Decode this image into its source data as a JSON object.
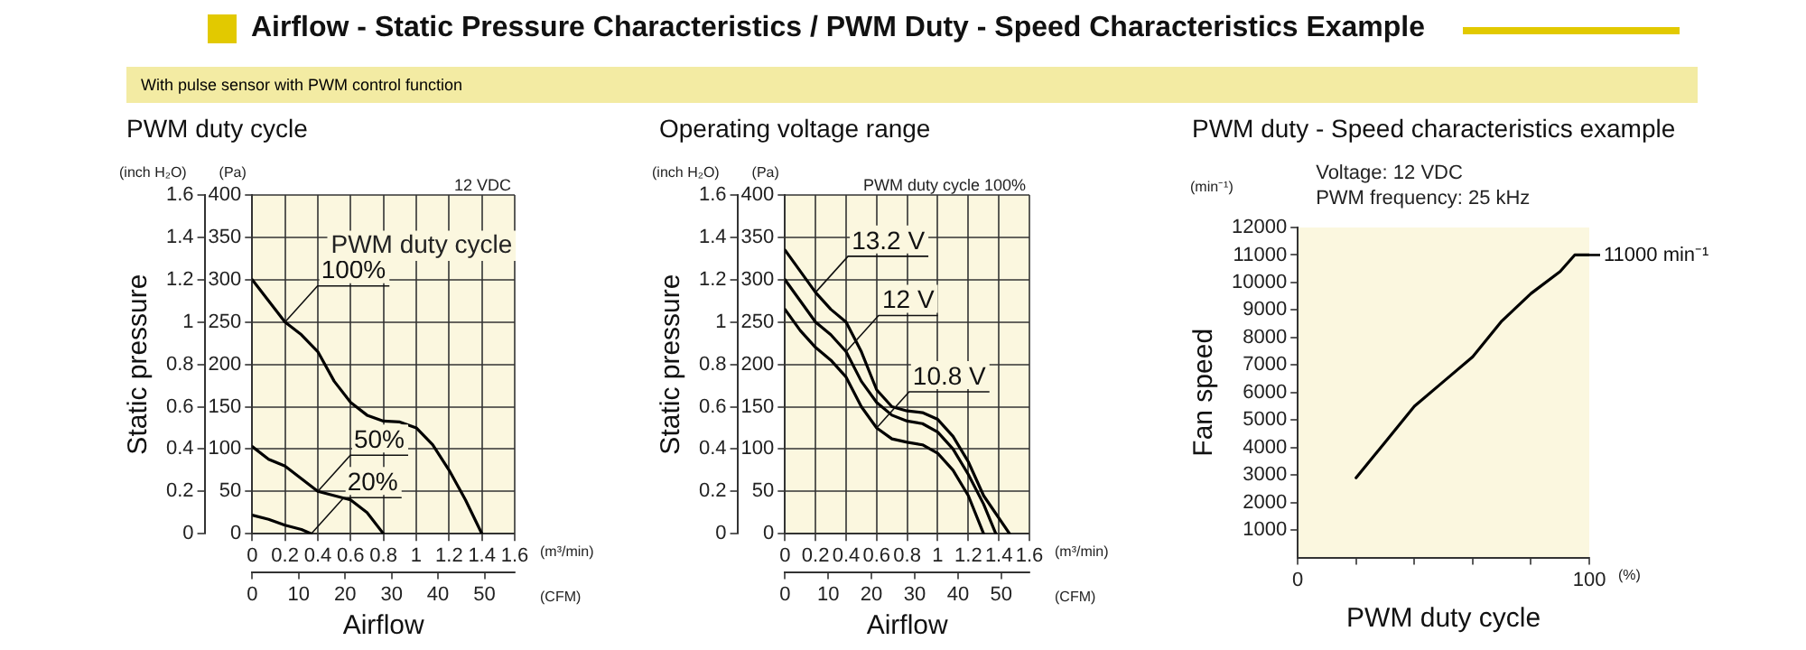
{
  "chart_data": [
    {
      "type": "line",
      "title": "PWM duty cycle",
      "subtitle": "With pulse sensor with PWM control function",
      "xlabel": "Airflow",
      "ylabel": "Static pressure",
      "annotations": [
        "Airflow - Static Pressure Characteristics / PWM Duty - Speed Characteristics Example",
        "(inch H₂O)",
        "(Pa)",
        "(m³/min)",
        "(CFM)",
        "12 VDC",
        "PWM duty cycle"
      ],
      "series": [
        {
          "name": "100%",
          "color": "#000000",
          "axis": "y2",
          "x": [
            0,
            0.1,
            0.2,
            0.3,
            0.4,
            0.5,
            0.6,
            0.7,
            0.8,
            0.9,
            1.0,
            1.1,
            1.2,
            1.3,
            1.4
          ],
          "values": [
            300,
            275,
            250,
            235,
            215,
            180,
            155,
            140,
            133,
            132,
            125,
            105,
            75,
            40,
            0
          ]
        },
        {
          "name": "50%",
          "color": "#000000",
          "axis": "y2",
          "x": [
            0,
            0.1,
            0.2,
            0.3,
            0.4,
            0.5,
            0.6,
            0.7,
            0.8
          ],
          "values": [
            103,
            88,
            80,
            65,
            50,
            45,
            40,
            25,
            0
          ]
        },
        {
          "name": "20%",
          "color": "#000000",
          "axis": "y2",
          "x": [
            0,
            0.1,
            0.2,
            0.3,
            0.36
          ],
          "values": [
            22,
            17,
            10,
            5,
            0
          ]
        }
      ],
      "xlim": [
        0,
        1.6
      ],
      "xticks": [
        0,
        0.2,
        0.4,
        0.6,
        0.8,
        1.0,
        1.2,
        1.4,
        1.6
      ],
      "y2lim": [
        0,
        400
      ],
      "y2ticks": [
        0,
        50,
        100,
        150,
        200,
        250,
        300,
        350,
        400
      ],
      "ylim": [
        0,
        1.6
      ],
      "yticks": [
        0,
        0.2,
        0.4,
        0.6,
        0.8,
        1.0,
        1.2,
        1.4,
        1.6
      ],
      "x2lim": [
        0,
        56.5
      ],
      "x2ticks": [
        0,
        10,
        20,
        30,
        40,
        50
      ],
      "grid": true,
      "legend": false
    },
    {
      "type": "line",
      "title": "Operating voltage range",
      "xlabel": "Airflow",
      "ylabel": "Static pressure",
      "annotations": [
        "(inch H₂O)",
        "(Pa)",
        "(m³/min)",
        "(CFM)",
        "PWM duty cycle 100%"
      ],
      "series": [
        {
          "name": "13.2 V",
          "color": "#000000",
          "axis": "y2",
          "x": [
            0,
            0.1,
            0.2,
            0.3,
            0.4,
            0.5,
            0.6,
            0.7,
            0.8,
            0.9,
            1.0,
            1.1,
            1.2,
            1.3,
            1.47
          ],
          "values": [
            335,
            310,
            285,
            265,
            250,
            215,
            170,
            150,
            145,
            143,
            135,
            115,
            85,
            45,
            0
          ]
        },
        {
          "name": "12 V",
          "color": "#000000",
          "axis": "y2",
          "x": [
            0,
            0.1,
            0.2,
            0.3,
            0.4,
            0.5,
            0.6,
            0.7,
            0.8,
            0.9,
            1.0,
            1.1,
            1.2,
            1.3,
            1.38
          ],
          "values": [
            300,
            275,
            250,
            235,
            215,
            180,
            155,
            140,
            133,
            130,
            120,
            100,
            70,
            35,
            0
          ]
        },
        {
          "name": "10.8 V",
          "color": "#000000",
          "axis": "y2",
          "x": [
            0,
            0.1,
            0.2,
            0.3,
            0.4,
            0.5,
            0.6,
            0.7,
            0.8,
            0.9,
            1.0,
            1.1,
            1.2,
            1.3
          ],
          "values": [
            265,
            240,
            220,
            205,
            185,
            150,
            125,
            112,
            108,
            105,
            95,
            75,
            45,
            0
          ]
        }
      ],
      "xlim": [
        0,
        1.6
      ],
      "xticks": [
        0,
        0.2,
        0.4,
        0.6,
        0.8,
        1.0,
        1.2,
        1.4,
        1.6
      ],
      "y2lim": [
        0,
        400
      ],
      "y2ticks": [
        0,
        50,
        100,
        150,
        200,
        250,
        300,
        350,
        400
      ],
      "ylim": [
        0,
        1.6
      ],
      "yticks": [
        0,
        0.2,
        0.4,
        0.6,
        0.8,
        1.0,
        1.2,
        1.4,
        1.6
      ],
      "x2lim": [
        0,
        56.5
      ],
      "x2ticks": [
        0,
        10,
        20,
        30,
        40,
        50
      ],
      "grid": true,
      "legend": false
    },
    {
      "type": "line",
      "title": "PWM duty - Speed characteristics example",
      "xlabel": "PWM duty cycle",
      "ylabel": "Fan speed",
      "annotations": [
        "(min⁻¹)",
        "(%)",
        "Voltage: 12 VDC",
        "PWM frequency: 25 kHz",
        {
          "text": "11000 min⁻¹",
          "x": 100,
          "y": 11000
        }
      ],
      "series": [
        {
          "color": "#000000",
          "x": [
            20,
            30,
            40,
            50,
            60,
            70,
            80,
            90,
            95,
            100
          ],
          "values": [
            2900,
            4200,
            5500,
            6400,
            7300,
            8600,
            9600,
            10400,
            11000,
            11000
          ]
        }
      ],
      "xlim": [
        0,
        100
      ],
      "xticks": [
        0,
        {
          "value": 20,
          "label": null
        },
        {
          "value": 40,
          "label": null
        },
        {
          "value": 60,
          "label": null
        },
        {
          "value": 80,
          "label": null
        },
        100
      ],
      "ylim": [
        0,
        12000
      ],
      "yticks": [
        1000,
        2000,
        3000,
        4000,
        5000,
        6000,
        7000,
        8000,
        9000,
        10000,
        11000,
        12000
      ],
      "grid": false,
      "legend": false
    }
  ]
}
